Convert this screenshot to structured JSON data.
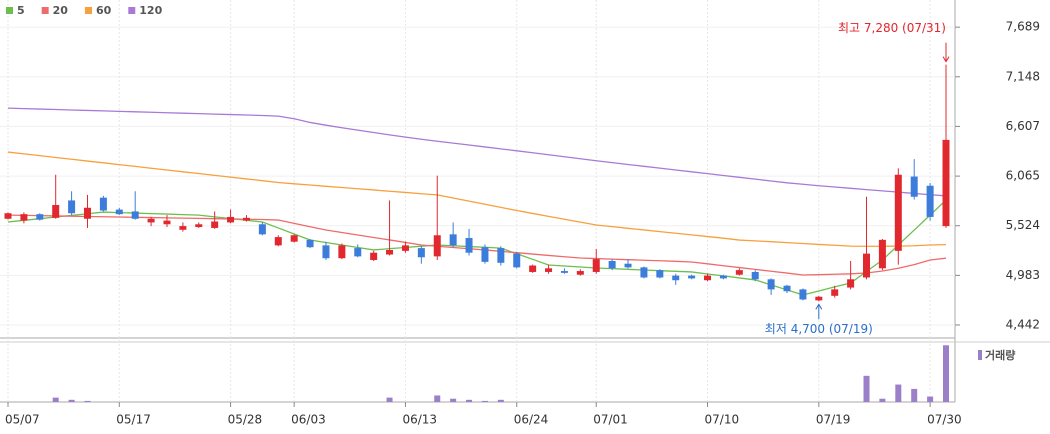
{
  "chart_data": {
    "type": "candlestick",
    "categories": [
      "05/07",
      null,
      null,
      null,
      null,
      null,
      null,
      "05/17",
      null,
      null,
      null,
      null,
      null,
      null,
      "05/28",
      null,
      null,
      null,
      "06/03",
      null,
      null,
      null,
      null,
      null,
      null,
      "06/13",
      null,
      null,
      null,
      null,
      null,
      null,
      "06/24",
      null,
      null,
      null,
      null,
      "07/01",
      null,
      null,
      null,
      null,
      null,
      null,
      "07/10",
      null,
      null,
      null,
      null,
      null,
      null,
      "07/19",
      null,
      null,
      null,
      null,
      null,
      null,
      "07/30",
      null
    ],
    "open": [
      5600,
      5580,
      5650,
      5610,
      5800,
      5600,
      5830,
      5700,
      5680,
      5560,
      5540,
      5480,
      5510,
      5500,
      5560,
      5580,
      5540,
      5310,
      5350,
      5370,
      5310,
      5170,
      5280,
      5150,
      5210,
      5250,
      5280,
      5190,
      5430,
      5390,
      5290,
      5280,
      5220,
      5020,
      5020,
      5030,
      4990,
      5020,
      5140,
      5110,
      5070,
      5040,
      4980,
      4980,
      4930,
      4980,
      4990,
      5020,
      4940,
      4870,
      4830,
      4710,
      4760,
      4850,
      4960,
      5060,
      5250,
      6060,
      5960,
      5520
    ],
    "high": [
      5670,
      5670,
      5660,
      6080,
      5900,
      5860,
      5850,
      5720,
      5900,
      5620,
      5640,
      5560,
      5560,
      5680,
      5700,
      5640,
      5560,
      5420,
      5430,
      5380,
      5350,
      5330,
      5320,
      5250,
      5800,
      5350,
      5300,
      6070,
      5560,
      5490,
      5320,
      5300,
      5240,
      5100,
      5100,
      5060,
      5050,
      5270,
      5160,
      5160,
      5080,
      5050,
      5000,
      4990,
      5000,
      4990,
      5060,
      5040,
      4950,
      4880,
      4840,
      4760,
      4870,
      5140,
      5840,
      5380,
      6150,
      6250,
      5990,
      7280
    ],
    "low": [
      5590,
      5550,
      5580,
      5600,
      5640,
      5500,
      5680,
      5640,
      5590,
      5520,
      5510,
      5460,
      5500,
      5490,
      5550,
      5570,
      5420,
      5300,
      5340,
      5280,
      5150,
      5160,
      5180,
      5140,
      5200,
      5230,
      5110,
      5150,
      5290,
      5200,
      5110,
      5090,
      5060,
      5010,
      5000,
      5000,
      4980,
      5000,
      5040,
      5060,
      4950,
      4950,
      4880,
      4940,
      4920,
      4940,
      4980,
      4920,
      4770,
      4790,
      4710,
      4700,
      4740,
      4830,
      4940,
      5040,
      5100,
      5810,
      5580,
      5500
    ],
    "close": [
      5660,
      5650,
      5590,
      5750,
      5660,
      5720,
      5690,
      5650,
      5600,
      5600,
      5580,
      5520,
      5540,
      5570,
      5620,
      5610,
      5430,
      5400,
      5420,
      5290,
      5170,
      5310,
      5190,
      5230,
      5260,
      5310,
      5180,
      5420,
      5310,
      5230,
      5130,
      5120,
      5070,
      5090,
      5060,
      5010,
      5030,
      5160,
      5060,
      5070,
      4960,
      4960,
      4930,
      4950,
      4980,
      4950,
      5040,
      4940,
      4830,
      4810,
      4720,
      4750,
      4830,
      4940,
      5220,
      5370,
      6080,
      5840,
      5620,
      6460
    ],
    "up_color": "#e0282e",
    "down_color": "#3c7ddb",
    "series": [
      {
        "name": "5",
        "color": "#6cbf4e",
        "values": [
          5565,
          5583,
          5601,
          5619,
          5637,
          5655,
          5673,
          5667,
          5662,
          5656,
          5651,
          5645,
          5640,
          5621,
          5602,
          5584,
          5565,
          5500,
          5434,
          5368,
          5341,
          5314,
          5287,
          5260,
          5274,
          5287,
          5301,
          5314,
          5306,
          5297,
          5289,
          5280,
          5219,
          5158,
          5096,
          5085,
          5074,
          5063,
          5056,
          5049,
          5041,
          5034,
          5027,
          5020,
          4998,
          4977,
          4955,
          4933,
          4879,
          4824,
          4770,
          4813,
          4857,
          4900,
          5025,
          5150,
          5314,
          5477,
          5640,
          5804
        ]
      },
      {
        "name": "20",
        "color": "#ef6b6b",
        "values": [
          5640,
          5637,
          5634,
          5631,
          5628,
          5625,
          5622,
          5619,
          5616,
          5613,
          5610,
          5607,
          5604,
          5601,
          5598,
          5595,
          5592,
          5586,
          5550,
          5513,
          5477,
          5450,
          5423,
          5396,
          5369,
          5342,
          5314,
          5300,
          5287,
          5273,
          5260,
          5245,
          5230,
          5215,
          5200,
          5186,
          5172,
          5166,
          5160,
          5154,
          5148,
          5142,
          5136,
          5129,
          5109,
          5088,
          5068,
          5048,
          5028,
          5008,
          4987,
          4990,
          4995,
          5000,
          5009,
          5030,
          5060,
          5100,
          5150,
          5170
        ]
      },
      {
        "name": "60",
        "color": "#f7a03c",
        "values": [
          6327,
          6307,
          6288,
          6268,
          6249,
          6229,
          6210,
          6190,
          6171,
          6151,
          6132,
          6112,
          6093,
          6073,
          6054,
          6034,
          6015,
          5995,
          5981,
          5968,
          5954,
          5941,
          5927,
          5914,
          5900,
          5887,
          5873,
          5860,
          5826,
          5792,
          5758,
          5724,
          5690,
          5658,
          5626,
          5595,
          5563,
          5532,
          5514,
          5496,
          5478,
          5460,
          5442,
          5424,
          5406,
          5388,
          5368,
          5359,
          5350,
          5340,
          5330,
          5320,
          5311,
          5302,
          5300,
          5300,
          5302,
          5306,
          5314,
          5318
        ]
      },
      {
        "name": "120",
        "color": "#a77ad6",
        "values": [
          6806,
          6801,
          6796,
          6791,
          6786,
          6781,
          6776,
          6771,
          6766,
          6761,
          6756,
          6751,
          6746,
          6741,
          6736,
          6731,
          6726,
          6719,
          6690,
          6650,
          6620,
          6592,
          6566,
          6540,
          6515,
          6490,
          6467,
          6445,
          6425,
          6404,
          6383,
          6362,
          6341,
          6320,
          6298,
          6276,
          6254,
          6232,
          6212,
          6192,
          6172,
          6152,
          6132,
          6112,
          6092,
          6072,
          6052,
          6032,
          6012,
          5992,
          5976,
          5960,
          5946,
          5932,
          5918,
          5904,
          5890,
          5876,
          5862,
          5850
        ]
      }
    ],
    "ylim": [
      4300,
      7985
    ],
    "yticks": [
      {
        "value": 7689,
        "label": "7,689"
      },
      {
        "value": 7148,
        "label": "7,148"
      },
      {
        "value": 6607,
        "label": "6,607"
      },
      {
        "value": 6065,
        "label": "6,065"
      },
      {
        "value": 5524,
        "label": "5,524"
      },
      {
        "value": 4983,
        "label": "4,983"
      },
      {
        "value": 4442,
        "label": "4,442"
      }
    ],
    "volume": {
      "label": "거래량",
      "color": "#9b7fc8",
      "ylim": [
        0,
        55
      ],
      "values": [
        0,
        0,
        0,
        4,
        2,
        1,
        0,
        0,
        0,
        0,
        0,
        0,
        0,
        0,
        0,
        0,
        0,
        0,
        0,
        0,
        0,
        0,
        0,
        0,
        4,
        0,
        0,
        6,
        3,
        2,
        1,
        2,
        0,
        0,
        0,
        0,
        0,
        0,
        0,
        0,
        0,
        0,
        0,
        0,
        0,
        0,
        0,
        0,
        0,
        0,
        0,
        0,
        0,
        0,
        24,
        3,
        16,
        12,
        5,
        52
      ]
    },
    "annotations": [
      {
        "label": "최고 7,280 (07/31)",
        "value": 7280,
        "color": "#e0282e"
      },
      {
        "label": "최저 4,700 (07/19)",
        "value": 4700,
        "color": "#2b6fc9"
      }
    ]
  }
}
